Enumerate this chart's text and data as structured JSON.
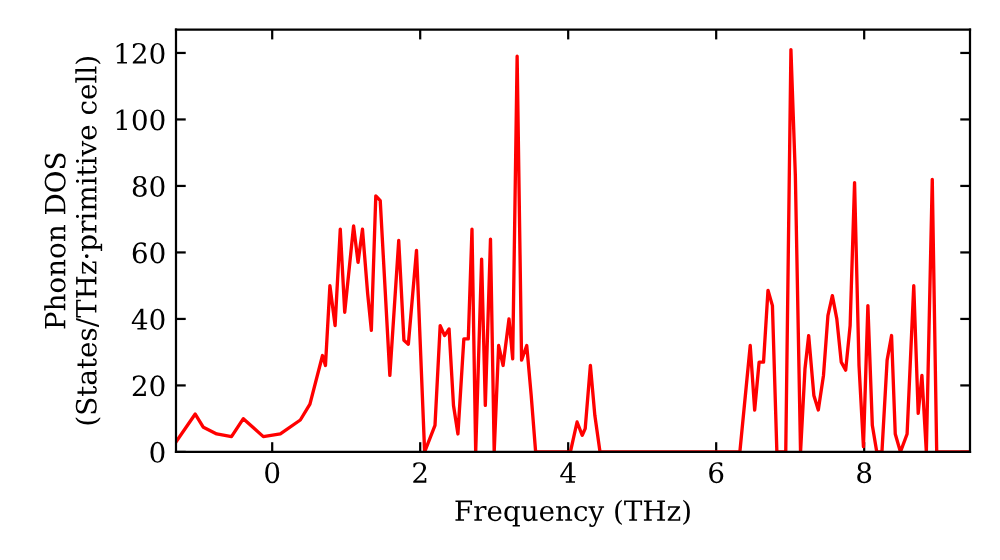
{
  "chart_data": {
    "type": "line",
    "xlabel": "Frequency (THz)",
    "ylabel": "Phonon DOS\n(States/THz·primitive cell)",
    "xlim": [
      -1.3,
      9.43
    ],
    "ylim": [
      0,
      127
    ],
    "xticks": [
      0,
      2,
      4,
      6,
      8
    ],
    "yticks": [
      0,
      20,
      40,
      60,
      80,
      100,
      120
    ],
    "grid": false,
    "legend": false,
    "marker": "none",
    "line_style": "solid",
    "x": [
      -1.3,
      -1.04,
      -0.93,
      -0.75,
      -0.55,
      -0.39,
      -0.12,
      0.11,
      0.38,
      0.51,
      0.68,
      0.72,
      0.78,
      0.85,
      0.92,
      0.98,
      1.1,
      1.16,
      1.22,
      1.29,
      1.34,
      1.4,
      1.46,
      1.59,
      1.71,
      1.78,
      1.84,
      1.95,
      2.06,
      2.2,
      2.27,
      2.33,
      2.39,
      2.45,
      2.51,
      2.59,
      2.65,
      2.7,
      2.75,
      2.83,
      2.88,
      2.95,
      3.0,
      3.06,
      3.12,
      3.2,
      3.25,
      3.31,
      3.37,
      3.44,
      3.5,
      3.56,
      4.03,
      4.12,
      4.19,
      4.23,
      4.3,
      4.36,
      4.43,
      6.32,
      6.46,
      6.52,
      6.58,
      6.64,
      6.7,
      6.76,
      6.82,
      6.94,
      7.01,
      7.07,
      7.14,
      7.2,
      7.25,
      7.32,
      7.38,
      7.45,
      7.51,
      7.57,
      7.63,
      7.69,
      7.75,
      7.81,
      7.87,
      7.93,
      7.99,
      8.05,
      8.11,
      8.17,
      8.24,
      8.31,
      8.37,
      8.42,
      8.49,
      8.58,
      8.67,
      8.73,
      8.78,
      8.84,
      8.92,
      8.98,
      9.43
    ],
    "series": [
      {
        "color": "#ff0000",
        "values": [
          3,
          11.4,
          7.4,
          5.4,
          4.6,
          10,
          4.6,
          5.4,
          9.6,
          14.4,
          29,
          26,
          50,
          38,
          67,
          42,
          68,
          57,
          67,
          47.6,
          36.6,
          77,
          75.6,
          23,
          63.6,
          33.6,
          32.4,
          60.6,
          0,
          8,
          38,
          35,
          37,
          14,
          5.4,
          34,
          34,
          67,
          0,
          58,
          14,
          64,
          0,
          32,
          26,
          40,
          28,
          119,
          27.6,
          32,
          17,
          0,
          0,
          9,
          5,
          7,
          26,
          11,
          0,
          0,
          32,
          12.6,
          27,
          27,
          48.6,
          44,
          0,
          0,
          121,
          83,
          0,
          25,
          35,
          17,
          12.6,
          23,
          41,
          47,
          40,
          27,
          24.6,
          38,
          81,
          26,
          1.6,
          44,
          8,
          0,
          0,
          27.6,
          35,
          5.4,
          0,
          5.4,
          50,
          11.6,
          23,
          0,
          82,
          0,
          0
        ]
      }
    ]
  }
}
